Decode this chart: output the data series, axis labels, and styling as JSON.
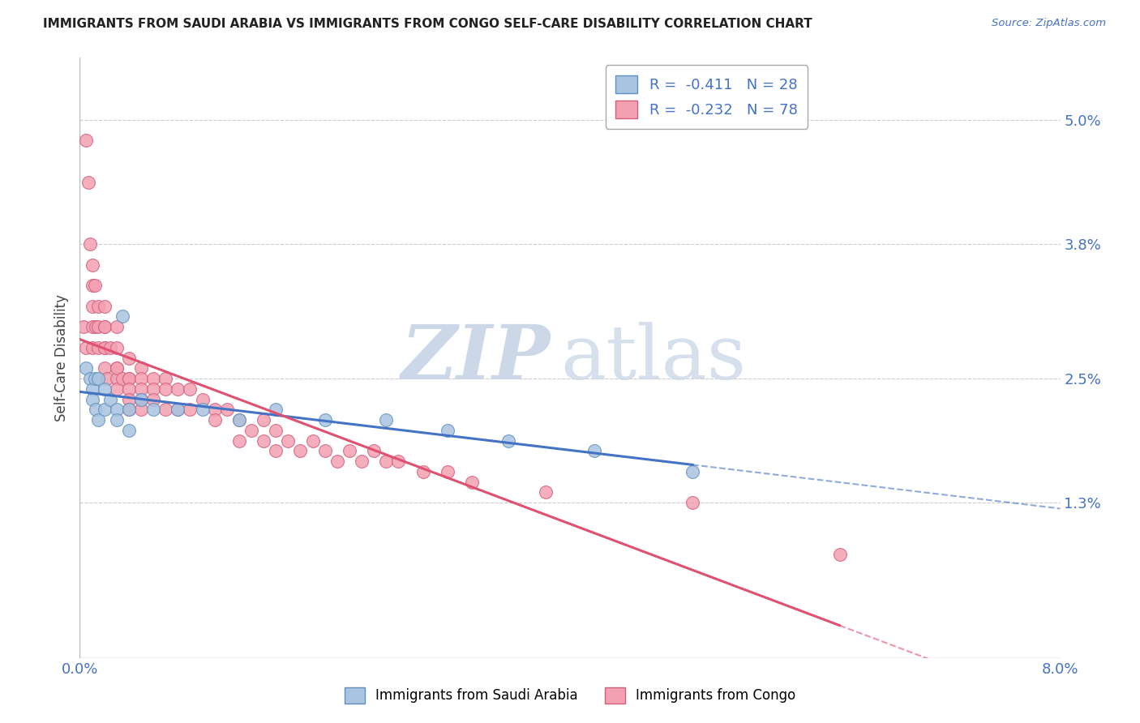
{
  "title": "IMMIGRANTS FROM SAUDI ARABIA VS IMMIGRANTS FROM CONGO SELF-CARE DISABILITY CORRELATION CHART",
  "source": "Source: ZipAtlas.com",
  "ylabel": "Self-Care Disability",
  "ytick_labels": [
    "5.0%",
    "3.8%",
    "2.5%",
    "1.3%"
  ],
  "ytick_values": [
    0.05,
    0.038,
    0.025,
    0.013
  ],
  "xmin": 0.0,
  "xmax": 0.08,
  "ymin": -0.002,
  "ymax": 0.056,
  "legend_entries": [
    {
      "label": "Immigrants from Saudi Arabia",
      "color": "#a8c4e0",
      "R": "-0.411",
      "N": "28"
    },
    {
      "label": "Immigrants from Congo",
      "color": "#f4a0b0",
      "R": "-0.232",
      "N": "78"
    }
  ],
  "saudi_x": [
    0.0005,
    0.0008,
    0.001,
    0.001,
    0.0012,
    0.0013,
    0.0015,
    0.0015,
    0.002,
    0.002,
    0.0025,
    0.003,
    0.003,
    0.0035,
    0.004,
    0.004,
    0.005,
    0.006,
    0.008,
    0.01,
    0.013,
    0.016,
    0.02,
    0.025,
    0.03,
    0.035,
    0.042,
    0.05
  ],
  "saudi_y": [
    0.026,
    0.025,
    0.024,
    0.023,
    0.025,
    0.022,
    0.025,
    0.021,
    0.024,
    0.022,
    0.023,
    0.022,
    0.021,
    0.031,
    0.022,
    0.02,
    0.023,
    0.022,
    0.022,
    0.022,
    0.021,
    0.022,
    0.021,
    0.021,
    0.02,
    0.019,
    0.018,
    0.016
  ],
  "congo_x": [
    0.0003,
    0.0005,
    0.0005,
    0.0007,
    0.0008,
    0.001,
    0.001,
    0.001,
    0.001,
    0.001,
    0.0012,
    0.0013,
    0.0015,
    0.0015,
    0.0015,
    0.002,
    0.002,
    0.002,
    0.002,
    0.002,
    0.002,
    0.0022,
    0.0025,
    0.003,
    0.003,
    0.003,
    0.003,
    0.003,
    0.003,
    0.0035,
    0.004,
    0.004,
    0.004,
    0.004,
    0.004,
    0.004,
    0.005,
    0.005,
    0.005,
    0.005,
    0.005,
    0.006,
    0.006,
    0.006,
    0.007,
    0.007,
    0.007,
    0.008,
    0.008,
    0.009,
    0.009,
    0.01,
    0.011,
    0.011,
    0.012,
    0.013,
    0.013,
    0.014,
    0.015,
    0.015,
    0.016,
    0.016,
    0.017,
    0.018,
    0.019,
    0.02,
    0.021,
    0.022,
    0.023,
    0.024,
    0.025,
    0.026,
    0.028,
    0.03,
    0.032,
    0.038,
    0.05,
    0.062
  ],
  "congo_y": [
    0.03,
    0.028,
    0.048,
    0.044,
    0.038,
    0.036,
    0.034,
    0.032,
    0.03,
    0.028,
    0.034,
    0.03,
    0.032,
    0.03,
    0.028,
    0.032,
    0.03,
    0.028,
    0.026,
    0.028,
    0.03,
    0.025,
    0.028,
    0.03,
    0.028,
    0.026,
    0.025,
    0.024,
    0.026,
    0.025,
    0.027,
    0.025,
    0.025,
    0.024,
    0.023,
    0.022,
    0.026,
    0.025,
    0.024,
    0.023,
    0.022,
    0.025,
    0.024,
    0.023,
    0.025,
    0.024,
    0.022,
    0.024,
    0.022,
    0.024,
    0.022,
    0.023,
    0.022,
    0.021,
    0.022,
    0.021,
    0.019,
    0.02,
    0.021,
    0.019,
    0.02,
    0.018,
    0.019,
    0.018,
    0.019,
    0.018,
    0.017,
    0.018,
    0.017,
    0.018,
    0.017,
    0.017,
    0.016,
    0.016,
    0.015,
    0.014,
    0.013,
    0.008
  ],
  "saudi_line_color": "#4472c4",
  "congo_line_color": "#e05070",
  "saudi_dot_color": "#a8c4e0",
  "congo_dot_color": "#f4a0b0",
  "saudi_dot_edge": "#6090c0",
  "congo_dot_edge": "#d06080",
  "background_color": "#ffffff",
  "grid_color": "#cccccc",
  "watermark_color": "#ccd8e8"
}
